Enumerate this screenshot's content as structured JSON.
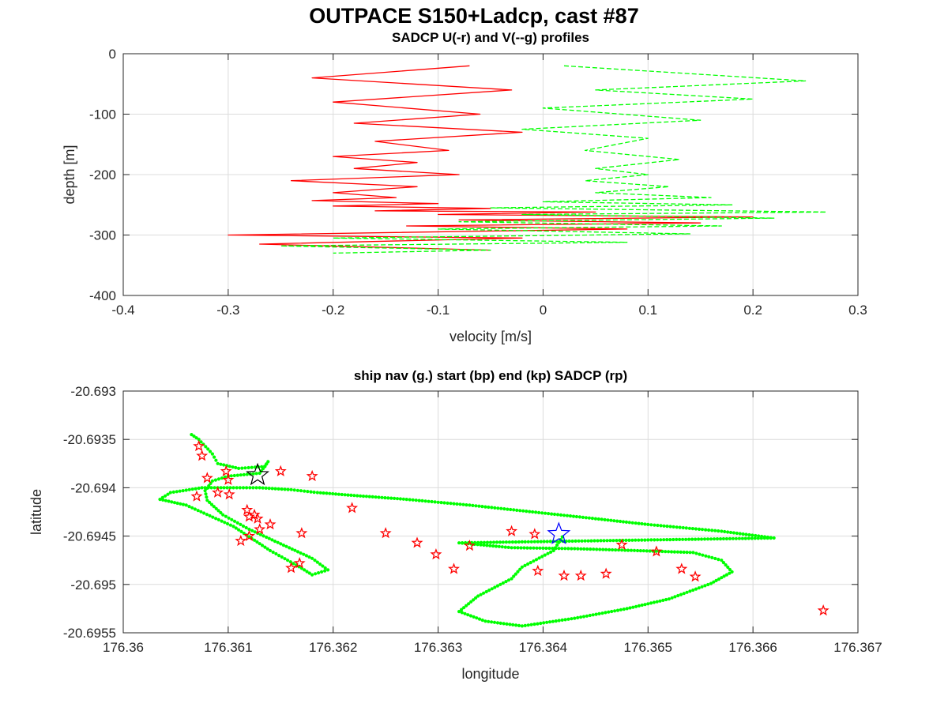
{
  "figure": {
    "suptitle": "OUTPACE S150+Ladcp, cast #87"
  },
  "chart_data": [
    {
      "type": "line",
      "title": "SADCP U(-r) and V(--g) profiles",
      "xlabel": "velocity [m/s]",
      "ylabel": "depth [m]",
      "xlim": [
        -0.4,
        0.3
      ],
      "ylim": [
        -400,
        0
      ],
      "xticks": [
        -0.4,
        -0.3,
        -0.2,
        -0.1,
        0,
        0.1,
        0.2,
        0.3
      ],
      "yticks": [
        0,
        -100,
        -200,
        -300,
        -400
      ],
      "xtick_labels": [
        "-0.4",
        "-0.3",
        "-0.2",
        "-0.1",
        "0",
        "0.1",
        "0.2",
        "0.3"
      ],
      "ytick_labels": [
        "0",
        "-100",
        "-200",
        "-300",
        "-400"
      ],
      "grid": true,
      "series": [
        {
          "color": "#ff0000",
          "style": "solid",
          "x": [
            -0.07,
            -0.22,
            -0.03,
            -0.2,
            -0.06,
            -0.18,
            -0.02,
            -0.16,
            -0.09,
            -0.2,
            -0.12,
            -0.18,
            -0.08,
            -0.24,
            -0.12,
            -0.2,
            -0.14,
            -0.22,
            -0.1,
            -0.2,
            -0.05,
            -0.16,
            0.05,
            -0.1,
            0.2,
            -0.08,
            0.15,
            -0.13,
            0.08,
            -0.3,
            -0.02,
            -0.27,
            -0.05
          ],
          "y": [
            -20,
            -40,
            -60,
            -80,
            -100,
            -115,
            -130,
            -145,
            -160,
            -170,
            -180,
            -190,
            -200,
            -210,
            -220,
            -230,
            -238,
            -243,
            -248,
            -252,
            -256,
            -260,
            -262,
            -266,
            -270,
            -275,
            -280,
            -285,
            -290,
            -300,
            -305,
            -315,
            -325
          ]
        },
        {
          "color": "#00ff00",
          "style": "dashed",
          "x": [
            0.02,
            0.25,
            0.05,
            0.2,
            0.0,
            0.15,
            -0.02,
            0.1,
            0.04,
            0.13,
            0.05,
            0.1,
            0.04,
            0.12,
            0.05,
            0.16,
            0.0,
            0.18,
            -0.05,
            0.27,
            -0.02,
            0.22,
            -0.08,
            0.17,
            -0.1,
            0.14,
            -0.2,
            0.08,
            -0.25,
            -0.05,
            -0.2
          ],
          "y": [
            -20,
            -45,
            -60,
            -75,
            -90,
            -110,
            -125,
            -140,
            -160,
            -175,
            -190,
            -200,
            -210,
            -220,
            -230,
            -238,
            -245,
            -250,
            -255,
            -262,
            -266,
            -272,
            -278,
            -285,
            -290,
            -298,
            -305,
            -312,
            -318,
            -325,
            -330
          ]
        }
      ]
    },
    {
      "type": "scatter",
      "title": "ship nav (g.) start (bp) end (kp) SADCP (rp)",
      "xlabel": "longitude",
      "ylabel": "latitude",
      "xlim": [
        176.36,
        176.367
      ],
      "ylim": [
        -20.6955,
        -20.693
      ],
      "xticks": [
        176.36,
        176.361,
        176.362,
        176.363,
        176.364,
        176.365,
        176.366,
        176.367
      ],
      "yticks": [
        -20.693,
        -20.6935,
        -20.694,
        -20.6945,
        -20.695,
        -20.6955
      ],
      "xtick_labels": [
        "176.36",
        "176.361",
        "176.362",
        "176.363",
        "176.364",
        "176.365",
        "176.366",
        "176.367"
      ],
      "ytick_labels": [
        "-20.693",
        "-20.6935",
        "-20.694",
        "-20.6945",
        "-20.695",
        "-20.6955"
      ],
      "grid": true,
      "ship_nav_track": {
        "color": "#00ff00",
        "lon": [
          176.36065,
          176.36072,
          176.36085,
          176.3609,
          176.3611,
          176.36135,
          176.36138,
          176.3613,
          176.361,
          176.36085,
          176.36078,
          176.3608,
          176.36095,
          176.3612,
          176.3615,
          176.3618,
          176.36195,
          176.3618,
          176.36165,
          176.3614,
          176.36105,
          176.3606,
          176.36035,
          176.36045,
          176.36075,
          176.36105,
          176.3613,
          176.3616,
          176.36185,
          176.3622,
          176.3627,
          176.3633,
          176.3639,
          176.3645,
          176.365,
          176.3657,
          176.3662,
          176.3632,
          176.3637,
          176.3643,
          176.3649,
          176.36543,
          176.3657,
          176.3658,
          176.3656,
          176.3652,
          176.3648,
          176.3643,
          176.3638,
          176.36345,
          176.3632,
          176.36338,
          176.3637,
          176.3638,
          176.3641,
          176.3642
        ],
        "lat": [
          -20.69345,
          -20.6935,
          -20.69365,
          -20.69375,
          -20.6938,
          -20.69378,
          -20.69373,
          -20.69385,
          -20.69388,
          -20.69393,
          -20.69403,
          -20.69413,
          -20.69428,
          -20.69443,
          -20.69458,
          -20.69473,
          -20.69485,
          -20.6949,
          -20.6948,
          -20.69465,
          -20.6944,
          -20.69418,
          -20.69412,
          -20.69405,
          -20.694,
          -20.694,
          -20.694,
          -20.69402,
          -20.69405,
          -20.69408,
          -20.69412,
          -20.69418,
          -20.69425,
          -20.69432,
          -20.69438,
          -20.69445,
          -20.69452,
          -20.69457,
          -20.69462,
          -20.69463,
          -20.69465,
          -20.69467,
          -20.69475,
          -20.69487,
          -20.69499,
          -20.69515,
          -20.69525,
          -20.69535,
          -20.69543,
          -20.69538,
          -20.69528,
          -20.69512,
          -20.69494,
          -20.69482,
          -20.69465,
          -20.69448
        ]
      },
      "sadcp_points": {
        "color": "#ff0000",
        "lon": [
          176.36072,
          176.36075,
          176.36098,
          176.3608,
          176.361,
          176.3609,
          176.36101,
          176.3607,
          176.36125,
          176.36118,
          176.3612,
          176.3612,
          176.36112,
          176.3615,
          176.3618,
          176.36128,
          176.3614,
          176.3613,
          176.3617,
          176.36218,
          176.36168,
          176.3616,
          176.3628,
          176.3633,
          176.36545,
          176.36667,
          176.3625,
          176.36298,
          176.36315,
          176.36395,
          176.3642,
          176.36436,
          176.3646,
          176.36475,
          176.36508,
          176.36532,
          176.3637,
          176.36392
        ],
        "lat": [
          -20.69357,
          -20.69367,
          -20.69383,
          -20.6939,
          -20.69392,
          -20.69405,
          -20.69407,
          -20.69409,
          -20.69428,
          -20.69423,
          -20.6943,
          -20.6945,
          -20.69455,
          -20.69383,
          -20.69388,
          -20.69432,
          -20.69438,
          -20.69443,
          -20.69447,
          -20.69421,
          -20.69478,
          -20.69483,
          -20.69457,
          -20.6946,
          -20.69492,
          -20.69527,
          -20.69447,
          -20.69469,
          -20.69484,
          -20.69486,
          -20.69491,
          -20.69491,
          -20.69489,
          -20.69459,
          -20.69466,
          -20.69484,
          -20.69445,
          -20.69448
        ]
      },
      "start_point": {
        "color": "#0000ff",
        "lon": 176.36415,
        "lat": -20.69448
      },
      "end_point": {
        "color": "#000000",
        "lon": 176.36128,
        "lat": -20.69387
      }
    }
  ]
}
